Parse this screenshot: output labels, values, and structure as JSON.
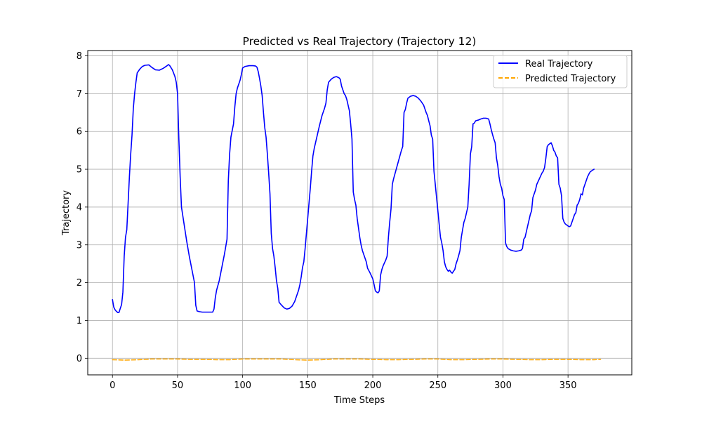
{
  "chart_data": {
    "type": "line",
    "title": "Predicted vs Real Trajectory (Trajectory 12)",
    "xlabel": "Time Steps",
    "ylabel": "Trajectory",
    "xlim": [
      -19,
      399
    ],
    "ylim": [
      -0.44,
      8.14
    ],
    "xticks": [
      0,
      50,
      100,
      150,
      200,
      250,
      300,
      350
    ],
    "yticks": [
      0,
      1,
      2,
      3,
      4,
      5,
      6,
      7,
      8
    ],
    "grid": true,
    "legend_position": "top-right",
    "series": [
      {
        "name": "Real Trajectory",
        "color": "#0000ff",
        "style": "solid",
        "points": [
          [
            0,
            1.55
          ],
          [
            1,
            1.35
          ],
          [
            2,
            1.28
          ],
          [
            3,
            1.24
          ],
          [
            4,
            1.21
          ],
          [
            5,
            1.21
          ],
          [
            6,
            1.32
          ],
          [
            7,
            1.42
          ],
          [
            8,
            1.75
          ],
          [
            9,
            2.7
          ],
          [
            10,
            3.2
          ],
          [
            11,
            3.4
          ],
          [
            12,
            4.1
          ],
          [
            13,
            4.8
          ],
          [
            14,
            5.4
          ],
          [
            15,
            5.9
          ],
          [
            16,
            6.6
          ],
          [
            17,
            7.0
          ],
          [
            18,
            7.3
          ],
          [
            19,
            7.55
          ],
          [
            21,
            7.65
          ],
          [
            23,
            7.72
          ],
          [
            25,
            7.75
          ],
          [
            28,
            7.76
          ],
          [
            30,
            7.7
          ],
          [
            33,
            7.63
          ],
          [
            36,
            7.62
          ],
          [
            39,
            7.67
          ],
          [
            42,
            7.74
          ],
          [
            43,
            7.77
          ],
          [
            44,
            7.74
          ],
          [
            46,
            7.63
          ],
          [
            48,
            7.45
          ],
          [
            49,
            7.3
          ],
          [
            50,
            7.0
          ],
          [
            51,
            5.8
          ],
          [
            52,
            4.8
          ],
          [
            53,
            4.0
          ],
          [
            55,
            3.55
          ],
          [
            57,
            3.1
          ],
          [
            59,
            2.7
          ],
          [
            61,
            2.35
          ],
          [
            63,
            2.0
          ],
          [
            64,
            1.4
          ],
          [
            65,
            1.25
          ],
          [
            67,
            1.23
          ],
          [
            69,
            1.22
          ],
          [
            72,
            1.22
          ],
          [
            75,
            1.22
          ],
          [
            77,
            1.22
          ],
          [
            78,
            1.3
          ],
          [
            79,
            1.6
          ],
          [
            80,
            1.8
          ],
          [
            82,
            2.05
          ],
          [
            84,
            2.4
          ],
          [
            86,
            2.75
          ],
          [
            88,
            3.15
          ],
          [
            89,
            4.7
          ],
          [
            90,
            5.4
          ],
          [
            91,
            5.85
          ],
          [
            93,
            6.2
          ],
          [
            94,
            6.65
          ],
          [
            95,
            7.0
          ],
          [
            96,
            7.15
          ],
          [
            98,
            7.35
          ],
          [
            99,
            7.5
          ],
          [
            100,
            7.68
          ],
          [
            102,
            7.72
          ],
          [
            105,
            7.74
          ],
          [
            108,
            7.74
          ],
          [
            110,
            7.73
          ],
          [
            111,
            7.7
          ],
          [
            112,
            7.58
          ],
          [
            113,
            7.4
          ],
          [
            114,
            7.2
          ],
          [
            115,
            6.95
          ],
          [
            116,
            6.5
          ],
          [
            117,
            6.1
          ],
          [
            118,
            5.85
          ],
          [
            119,
            5.4
          ],
          [
            120,
            4.9
          ],
          [
            121,
            4.35
          ],
          [
            122,
            3.3
          ],
          [
            123,
            2.9
          ],
          [
            124,
            2.7
          ],
          [
            125,
            2.4
          ],
          [
            126,
            2.05
          ],
          [
            127,
            1.85
          ],
          [
            128,
            1.48
          ],
          [
            130,
            1.4
          ],
          [
            132,
            1.33
          ],
          [
            134,
            1.3
          ],
          [
            136,
            1.32
          ],
          [
            138,
            1.38
          ],
          [
            140,
            1.5
          ],
          [
            142,
            1.7
          ],
          [
            143,
            1.8
          ],
          [
            144,
            1.95
          ],
          [
            145,
            2.15
          ],
          [
            146,
            2.4
          ],
          [
            147,
            2.55
          ],
          [
            148,
            2.9
          ],
          [
            149,
            3.3
          ],
          [
            150,
            3.7
          ],
          [
            151,
            4.1
          ],
          [
            152,
            4.5
          ],
          [
            153,
            4.95
          ],
          [
            154,
            5.35
          ],
          [
            155,
            5.55
          ],
          [
            157,
            5.85
          ],
          [
            159,
            6.15
          ],
          [
            161,
            6.42
          ],
          [
            163,
            6.62
          ],
          [
            164,
            6.75
          ],
          [
            165,
            7.1
          ],
          [
            166,
            7.3
          ],
          [
            168,
            7.38
          ],
          [
            170,
            7.43
          ],
          [
            172,
            7.45
          ],
          [
            174,
            7.42
          ],
          [
            175,
            7.38
          ],
          [
            176,
            7.2
          ],
          [
            177,
            7.1
          ],
          [
            178,
            7.0
          ],
          [
            179,
            6.95
          ],
          [
            180,
            6.85
          ],
          [
            181,
            6.7
          ],
          [
            182,
            6.55
          ],
          [
            183,
            6.2
          ],
          [
            184,
            5.8
          ],
          [
            185,
            4.4
          ],
          [
            186,
            4.2
          ],
          [
            187,
            4.05
          ],
          [
            188,
            3.7
          ],
          [
            189,
            3.45
          ],
          [
            190,
            3.2
          ],
          [
            191,
            3.0
          ],
          [
            192,
            2.85
          ],
          [
            194,
            2.65
          ],
          [
            195,
            2.55
          ],
          [
            196,
            2.38
          ],
          [
            198,
            2.25
          ],
          [
            200,
            2.1
          ],
          [
            201,
            1.95
          ],
          [
            202,
            1.78
          ],
          [
            203,
            1.75
          ],
          [
            204,
            1.73
          ],
          [
            205,
            1.78
          ],
          [
            206,
            2.2
          ],
          [
            207,
            2.35
          ],
          [
            208,
            2.45
          ],
          [
            210,
            2.6
          ],
          [
            211,
            2.7
          ],
          [
            212,
            3.2
          ],
          [
            213,
            3.6
          ],
          [
            214,
            3.95
          ],
          [
            215,
            4.6
          ],
          [
            216,
            4.75
          ],
          [
            218,
            5.0
          ],
          [
            220,
            5.25
          ],
          [
            222,
            5.5
          ],
          [
            223,
            5.6
          ],
          [
            224,
            6.5
          ],
          [
            225,
            6.58
          ],
          [
            226,
            6.75
          ],
          [
            227,
            6.88
          ],
          [
            229,
            6.93
          ],
          [
            231,
            6.95
          ],
          [
            233,
            6.93
          ],
          [
            235,
            6.88
          ],
          [
            237,
            6.8
          ],
          [
            239,
            6.7
          ],
          [
            240,
            6.6
          ],
          [
            241,
            6.5
          ],
          [
            242,
            6.42
          ],
          [
            243,
            6.28
          ],
          [
            244,
            6.15
          ],
          [
            245,
            5.9
          ],
          [
            246,
            5.8
          ],
          [
            247,
            4.95
          ],
          [
            248,
            4.6
          ],
          [
            250,
            3.9
          ],
          [
            251,
            3.55
          ],
          [
            252,
            3.2
          ],
          [
            253,
            3.05
          ],
          [
            254,
            2.85
          ],
          [
            255,
            2.55
          ],
          [
            256,
            2.42
          ],
          [
            257,
            2.35
          ],
          [
            258,
            2.3
          ],
          [
            259,
            2.33
          ],
          [
            260,
            2.28
          ],
          [
            261,
            2.25
          ],
          [
            262,
            2.3
          ],
          [
            263,
            2.35
          ],
          [
            264,
            2.5
          ],
          [
            265,
            2.6
          ],
          [
            266,
            2.72
          ],
          [
            267,
            2.85
          ],
          [
            268,
            3.2
          ],
          [
            269,
            3.4
          ],
          [
            270,
            3.6
          ],
          [
            271,
            3.7
          ],
          [
            272,
            3.85
          ],
          [
            273,
            4.0
          ],
          [
            274,
            4.6
          ],
          [
            275,
            5.4
          ],
          [
            276,
            5.6
          ],
          [
            277,
            6.2
          ],
          [
            278,
            6.22
          ],
          [
            279,
            6.28
          ],
          [
            281,
            6.3
          ],
          [
            283,
            6.33
          ],
          [
            285,
            6.35
          ],
          [
            287,
            6.35
          ],
          [
            289,
            6.33
          ],
          [
            290,
            6.2
          ],
          [
            291,
            6.05
          ],
          [
            292,
            5.92
          ],
          [
            293,
            5.8
          ],
          [
            294,
            5.7
          ],
          [
            295,
            5.3
          ],
          [
            296,
            5.1
          ],
          [
            297,
            4.8
          ],
          [
            298,
            4.6
          ],
          [
            299,
            4.5
          ],
          [
            300,
            4.3
          ],
          [
            301,
            4.2
          ],
          [
            302,
            3.05
          ],
          [
            303,
            2.95
          ],
          [
            304,
            2.9
          ],
          [
            306,
            2.86
          ],
          [
            308,
            2.84
          ],
          [
            310,
            2.83
          ],
          [
            312,
            2.84
          ],
          [
            314,
            2.86
          ],
          [
            315,
            2.9
          ],
          [
            316,
            3.15
          ],
          [
            317,
            3.2
          ],
          [
            318,
            3.35
          ],
          [
            319,
            3.5
          ],
          [
            320,
            3.65
          ],
          [
            321,
            3.8
          ],
          [
            322,
            3.9
          ],
          [
            323,
            4.25
          ],
          [
            324,
            4.35
          ],
          [
            325,
            4.45
          ],
          [
            326,
            4.6
          ],
          [
            328,
            4.75
          ],
          [
            330,
            4.9
          ],
          [
            331,
            4.95
          ],
          [
            332,
            5.05
          ],
          [
            333,
            5.3
          ],
          [
            334,
            5.6
          ],
          [
            335,
            5.65
          ],
          [
            337,
            5.7
          ],
          [
            338,
            5.62
          ],
          [
            339,
            5.5
          ],
          [
            340,
            5.45
          ],
          [
            341,
            5.35
          ],
          [
            342,
            5.3
          ],
          [
            343,
            4.6
          ],
          [
            344,
            4.5
          ],
          [
            345,
            4.3
          ],
          [
            346,
            3.7
          ],
          [
            347,
            3.6
          ],
          [
            348,
            3.55
          ],
          [
            350,
            3.5
          ],
          [
            351,
            3.48
          ],
          [
            352,
            3.5
          ],
          [
            353,
            3.6
          ],
          [
            354,
            3.7
          ],
          [
            355,
            3.8
          ],
          [
            356,
            3.85
          ],
          [
            357,
            4.05
          ],
          [
            358,
            4.1
          ],
          [
            359,
            4.2
          ],
          [
            360,
            4.35
          ],
          [
            361,
            4.32
          ],
          [
            362,
            4.5
          ],
          [
            363,
            4.6
          ],
          [
            364,
            4.7
          ],
          [
            365,
            4.8
          ],
          [
            366,
            4.87
          ],
          [
            367,
            4.93
          ],
          [
            369,
            4.98
          ],
          [
            370,
            5.0
          ]
        ]
      },
      {
        "name": "Predicted Trajectory",
        "color": "#ffa500",
        "style": "dashed",
        "points": [
          [
            0,
            -0.04
          ],
          [
            10,
            -0.05
          ],
          [
            20,
            -0.04
          ],
          [
            30,
            -0.02
          ],
          [
            40,
            -0.02
          ],
          [
            50,
            -0.02
          ],
          [
            60,
            -0.03
          ],
          [
            70,
            -0.03
          ],
          [
            80,
            -0.04
          ],
          [
            90,
            -0.04
          ],
          [
            100,
            -0.02
          ],
          [
            110,
            -0.02
          ],
          [
            120,
            -0.02
          ],
          [
            130,
            -0.02
          ],
          [
            140,
            -0.04
          ],
          [
            150,
            -0.05
          ],
          [
            160,
            -0.04
          ],
          [
            170,
            -0.02
          ],
          [
            180,
            -0.02
          ],
          [
            190,
            -0.02
          ],
          [
            200,
            -0.03
          ],
          [
            210,
            -0.04
          ],
          [
            220,
            -0.04
          ],
          [
            230,
            -0.03
          ],
          [
            240,
            -0.02
          ],
          [
            250,
            -0.02
          ],
          [
            260,
            -0.04
          ],
          [
            270,
            -0.04
          ],
          [
            280,
            -0.03
          ],
          [
            290,
            -0.02
          ],
          [
            300,
            -0.02
          ],
          [
            310,
            -0.03
          ],
          [
            320,
            -0.04
          ],
          [
            330,
            -0.04
          ],
          [
            340,
            -0.03
          ],
          [
            350,
            -0.03
          ],
          [
            360,
            -0.04
          ],
          [
            370,
            -0.04
          ],
          [
            375,
            -0.03
          ]
        ]
      }
    ]
  }
}
